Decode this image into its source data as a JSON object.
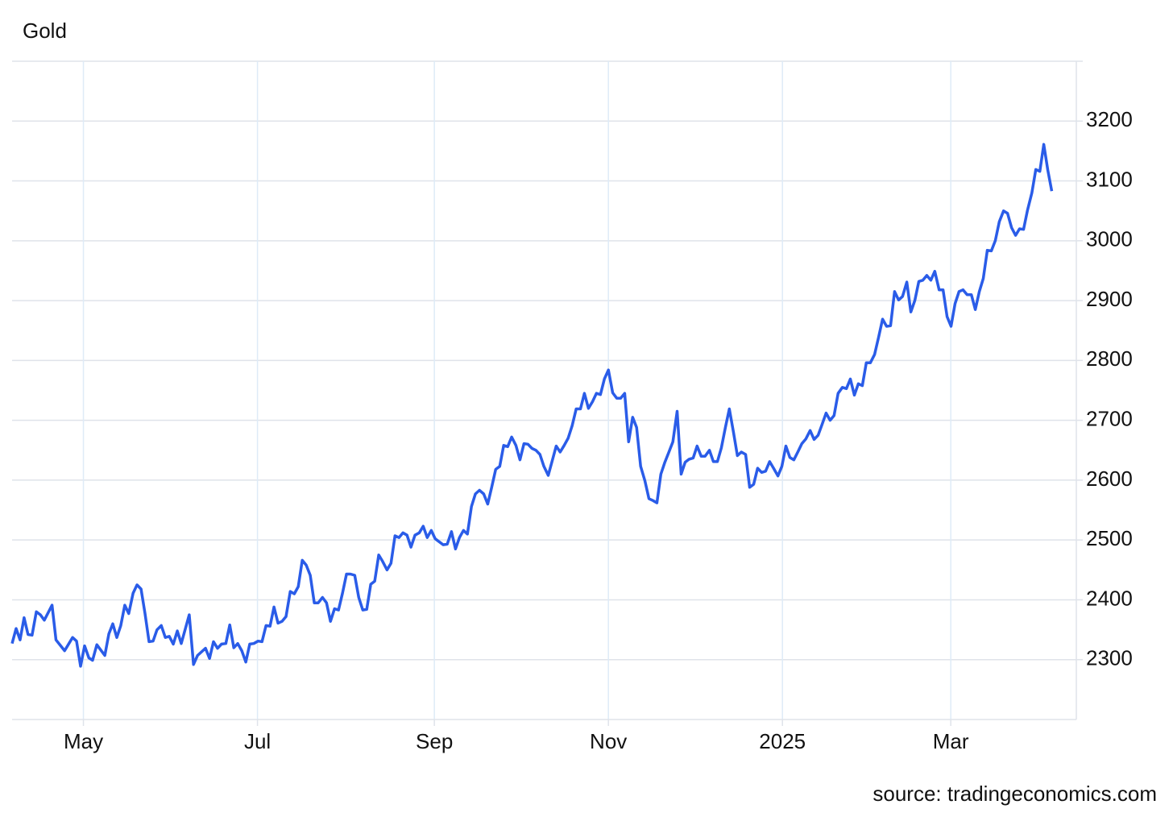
{
  "chart_data": {
    "type": "line",
    "title": "Gold",
    "source": "source: tradingeconomics.com",
    "color": "#2a5ce8",
    "xlim": [
      5,
      378
    ],
    "ylim": [
      2200,
      3300
    ],
    "xticks": [
      {
        "value": 30,
        "label": "May"
      },
      {
        "value": 91,
        "label": "Jul"
      },
      {
        "value": 153,
        "label": "Sep"
      },
      {
        "value": 214,
        "label": "Nov"
      },
      {
        "value": 275,
        "label": "2025"
      },
      {
        "value": 334,
        "label": "Mar"
      }
    ],
    "yticks": [
      2300,
      2400,
      2500,
      2600,
      2700,
      2800,
      2900,
      3000,
      3100,
      3200
    ],
    "grid": true,
    "x": [
      5,
      6.4,
      7.8,
      9.2,
      10.6,
      12,
      13.5,
      14.9,
      16.3,
      19,
      20.4,
      23.4,
      26.2,
      27.6,
      29,
      30.4,
      31.9,
      33.2,
      34.7,
      37.5,
      38.9,
      40.3,
      41.7,
      43.1,
      44.5,
      45.9,
      47.4,
      48.8,
      50.2,
      51.6,
      53,
      54.4,
      55.8,
      57.3,
      58.7,
      60.1,
      61.5,
      62.9,
      64.3,
      67.1,
      68.6,
      70,
      72.8,
      74.2,
      75.6,
      77,
      78.4,
      79.9,
      81.3,
      82.7,
      84.1,
      85.5,
      86.9,
      88.3,
      89.7,
      91.2,
      92.6,
      94,
      95.4,
      96.8,
      98.2,
      99.6,
      101,
      102.5,
      103.9,
      105.3,
      106.7,
      108.1,
      109.5,
      110.9,
      112.3,
      113.8,
      115.2,
      116.6,
      118,
      119.4,
      120.8,
      122.2,
      123.6,
      125.1,
      126.5,
      127.9,
      129.3,
      130.7,
      132.1,
      133.5,
      134.9,
      136.4,
      137.8,
      139.2,
      140.6,
      142,
      143.4,
      144.8,
      146.2,
      147.7,
      149.1,
      150.5,
      151.9,
      153.3,
      156.1,
      157.5,
      159,
      160.4,
      161.8,
      163.2,
      164.6,
      166,
      167.4,
      168.8,
      170.3,
      171.7,
      173.1,
      174.5,
      175.9,
      177.3,
      178.7,
      180.1,
      181.6,
      183,
      184.4,
      185.8,
      187.2,
      188.6,
      190,
      191.4,
      192.9,
      194.3,
      195.7,
      197.1,
      198.5,
      199.9,
      201.3,
      202.7,
      204.2,
      205.6,
      207,
      208.4,
      209.8,
      211.2,
      212.6,
      214,
      215.5,
      216.9,
      218.3,
      219.7,
      221.1,
      222.5,
      223.9,
      225.3,
      226.8,
      228.2,
      229.6,
      231,
      232.4,
      233.8,
      235.2,
      236.6,
      238.1,
      239.5,
      240.9,
      242.3,
      243.7,
      245.1,
      246.5,
      247.9,
      249.4,
      250.8,
      252.2,
      253.6,
      255,
      256.4,
      257.8,
      259.2,
      260.6,
      262.1,
      263.5,
      264.9,
      266.3,
      267.7,
      269.1,
      270.5,
      271.9,
      273.4,
      274.8,
      276.2,
      277.6,
      279,
      280.4,
      281.8,
      283.2,
      284.7,
      286.1,
      287.5,
      288.9,
      290.3,
      291.7,
      293.1,
      294.5,
      296,
      297.4,
      298.8,
      300.2,
      301.6,
      303,
      304.4,
      305.8,
      307.3,
      308.7,
      310.1,
      311.5,
      312.9,
      314.3,
      315.7,
      317.1,
      318.6,
      320,
      321.4,
      322.8,
      324.2,
      325.6,
      327,
      328.4,
      329.9,
      331.3,
      332.7,
      334.1,
      335.5,
      336.9,
      338.3,
      339.7,
      341.2,
      342.6,
      344,
      345.4,
      346.8,
      348.2,
      349.6,
      351,
      352.5,
      353.9,
      355.3,
      356.7,
      358.1,
      359.5,
      360.9,
      362.4,
      363.8,
      365.2,
      366.6,
      368,
      369.4
    ],
    "values": [
      2327,
      2352,
      2333,
      2370,
      2342,
      2341,
      2380,
      2375,
      2366,
      2391,
      2333,
      2315,
      2337,
      2331,
      2289,
      2323,
      2303,
      2299,
      2325,
      2307,
      2343,
      2360,
      2337,
      2357,
      2391,
      2377,
      2411,
      2425,
      2418,
      2377,
      2330,
      2331,
      2350,
      2357,
      2337,
      2339,
      2326,
      2348,
      2327,
      2375,
      2292,
      2307,
      2319,
      2302,
      2330,
      2319,
      2326,
      2327,
      2358,
      2320,
      2327,
      2315,
      2296,
      2326,
      2327,
      2331,
      2330,
      2357,
      2356,
      2388,
      2361,
      2364,
      2372,
      2414,
      2410,
      2422,
      2466,
      2458,
      2441,
      2395,
      2395,
      2404,
      2395,
      2364,
      2385,
      2383,
      2411,
      2443,
      2443,
      2441,
      2404,
      2383,
      2384,
      2426,
      2431,
      2475,
      2464,
      2450,
      2461,
      2507,
      2504,
      2512,
      2508,
      2488,
      2508,
      2512,
      2523,
      2504,
      2516,
      2502,
      2492,
      2493,
      2514,
      2485,
      2504,
      2516,
      2510,
      2556,
      2577,
      2583,
      2577,
      2560,
      2588,
      2618,
      2623,
      2658,
      2656,
      2672,
      2658,
      2634,
      2661,
      2660,
      2653,
      2650,
      2643,
      2623,
      2608,
      2632,
      2657,
      2647,
      2658,
      2670,
      2691,
      2719,
      2719,
      2745,
      2720,
      2731,
      2745,
      2743,
      2769,
      2784,
      2746,
      2737,
      2737,
      2745,
      2664,
      2705,
      2688,
      2623,
      2599,
      2569,
      2566,
      2562,
      2610,
      2630,
      2647,
      2664,
      2715,
      2610,
      2630,
      2635,
      2637,
      2657,
      2640,
      2640,
      2650,
      2631,
      2631,
      2654,
      2688,
      2719,
      2681,
      2641,
      2647,
      2643,
      2588,
      2593,
      2620,
      2613,
      2615,
      2631,
      2620,
      2607,
      2623,
      2657,
      2638,
      2634,
      2647,
      2661,
      2669,
      2683,
      2668,
      2675,
      2693,
      2712,
      2700,
      2708,
      2745,
      2755,
      2753,
      2769,
      2742,
      2761,
      2758,
      2796,
      2796,
      2810,
      2839,
      2869,
      2857,
      2858,
      2915,
      2901,
      2907,
      2931,
      2881,
      2900,
      2932,
      2934,
      2942,
      2934,
      2949,
      2918,
      2918,
      2873,
      2857,
      2895,
      2915,
      2918,
      2910,
      2910,
      2885,
      2915,
      2937,
      2984,
      2983,
      3000,
      3032,
      3050,
      3046,
      3022,
      3009,
      3020,
      3019,
      3051,
      3080,
      3119,
      3116,
      3161,
      3118,
      3083
    ]
  }
}
